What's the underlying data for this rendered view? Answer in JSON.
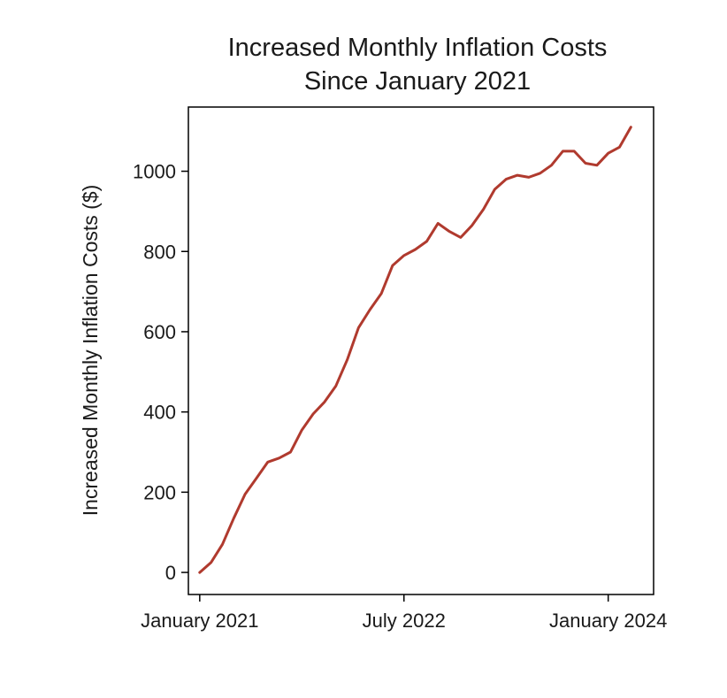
{
  "chart_data": {
    "type": "line",
    "title": [
      "Increased Monthly Inflation Costs",
      "Since January 2021"
    ],
    "xlabel": "",
    "ylabel": "Increased Monthly Inflation Costs ($)",
    "x_tick_labels": [
      "January 2021",
      "July 2022",
      "January 2024"
    ],
    "y_ticks": [
      0,
      200,
      400,
      600,
      800,
      1000
    ],
    "ylim": [
      -55,
      1160
    ],
    "xlim": [
      "2020-12",
      "2024-05"
    ],
    "grid": false,
    "legend": "none",
    "series": [
      {
        "color": "#b03a2e",
        "x": [
          "2021-01",
          "2021-02",
          "2021-03",
          "2021-04",
          "2021-05",
          "2021-06",
          "2021-07",
          "2021-08",
          "2021-09",
          "2021-10",
          "2021-11",
          "2021-12",
          "2022-01",
          "2022-02",
          "2022-03",
          "2022-04",
          "2022-05",
          "2022-06",
          "2022-07",
          "2022-08",
          "2022-09",
          "2022-10",
          "2022-11",
          "2022-12",
          "2023-01",
          "2023-02",
          "2023-03",
          "2023-04",
          "2023-05",
          "2023-06",
          "2023-07",
          "2023-08",
          "2023-09",
          "2023-10",
          "2023-11",
          "2023-12",
          "2024-01",
          "2024-02",
          "2024-03"
        ],
        "values": [
          0,
          25,
          70,
          135,
          195,
          235,
          275,
          285,
          300,
          355,
          395,
          425,
          465,
          530,
          610,
          655,
          695,
          765,
          790,
          805,
          825,
          870,
          850,
          835,
          865,
          905,
          955,
          980,
          990,
          985,
          995,
          1015,
          1050,
          1050,
          1020,
          1015,
          1045,
          1060,
          1110
        ]
      }
    ]
  }
}
